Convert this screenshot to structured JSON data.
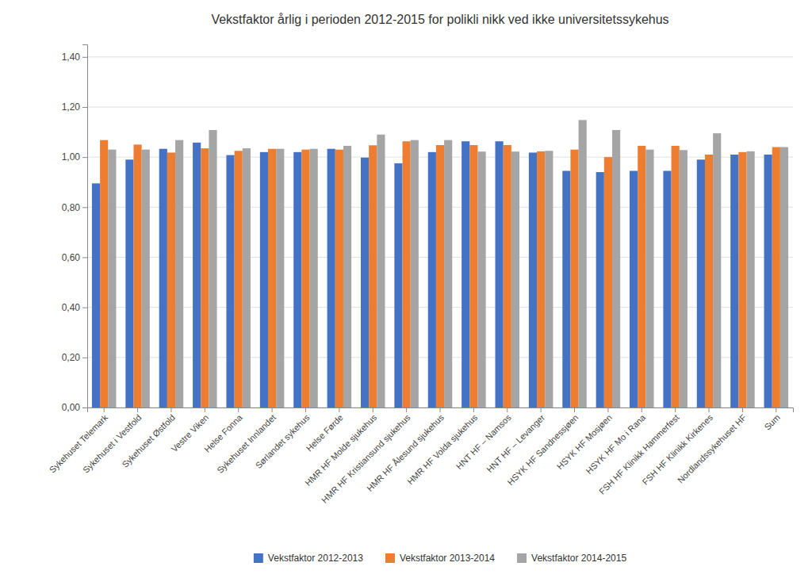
{
  "chart_data": {
    "type": "bar",
    "title": "Vekstfaktor årlig i perioden 2012-2015 for polikli nikk ved ikke universitetssykehus",
    "categories": [
      "Sykehuset Telemark",
      "Sykehuset i Vestfold",
      "Sykehuset Østfold",
      "Vestre Viken",
      "Helse Fonna",
      "Sykehuset Innlandet",
      "Sørlandet sykehus",
      "Helse Førde",
      "HMR HF Molde sjukehus",
      "HMR HF Kristiansund sjukehus",
      "HMR HF Ålesund sjukehus",
      "HMR HF Volda sjukehus",
      "HNT HF – Namsos",
      "HNT HF – Levanger",
      "HSYK HF Sandnessjøen",
      "HSYK HF Mosjøen",
      "HSYK HF Mo i Rana",
      "FSH HF Klinikk Hammerfest",
      "FSH HF Klinikk Kirkenes",
      "Nordlandssykehuset HF",
      "Sum"
    ],
    "series": [
      {
        "name": "Vekstfaktor 2012-2013",
        "color": "#4472C4",
        "values": [
          0.895,
          0.99,
          1.033,
          1.058,
          1.008,
          1.02,
          1.02,
          1.033,
          0.998,
          0.975,
          1.02,
          1.063,
          1.063,
          1.018,
          0.945,
          0.94,
          0.945,
          0.945,
          0.99,
          1.01,
          1.01
        ]
      },
      {
        "name": "Vekstfaktor 2013-2014",
        "color": "#ED7D31",
        "values": [
          1.068,
          1.05,
          1.018,
          1.035,
          1.025,
          1.033,
          1.03,
          1.03,
          1.047,
          1.063,
          1.048,
          1.048,
          1.048,
          1.023,
          1.03,
          1.0,
          1.045,
          1.045,
          1.01,
          1.02,
          1.04
        ]
      },
      {
        "name": "Vekstfaktor 2014-2015",
        "color": "#A5A5A5",
        "values": [
          1.03,
          1.03,
          1.068,
          1.108,
          1.035,
          1.033,
          1.033,
          1.045,
          1.09,
          1.068,
          1.068,
          1.022,
          1.022,
          1.025,
          1.148,
          1.108,
          1.03,
          1.028,
          1.095,
          1.023,
          1.04
        ]
      }
    ],
    "ylim": [
      0.0,
      1.45
    ],
    "yticks": [
      {
        "value": 0.0,
        "label": "0,00"
      },
      {
        "value": 0.2,
        "label": "0,20"
      },
      {
        "value": 0.4,
        "label": "0,40"
      },
      {
        "value": 0.6,
        "label": "0,60"
      },
      {
        "value": 0.8,
        "label": "0,80"
      },
      {
        "value": 1.0,
        "label": "1,00"
      },
      {
        "value": 1.2,
        "label": "1,20"
      },
      {
        "value": 1.4,
        "label": "1,40"
      }
    ],
    "grid": true,
    "legend": "bottom"
  }
}
